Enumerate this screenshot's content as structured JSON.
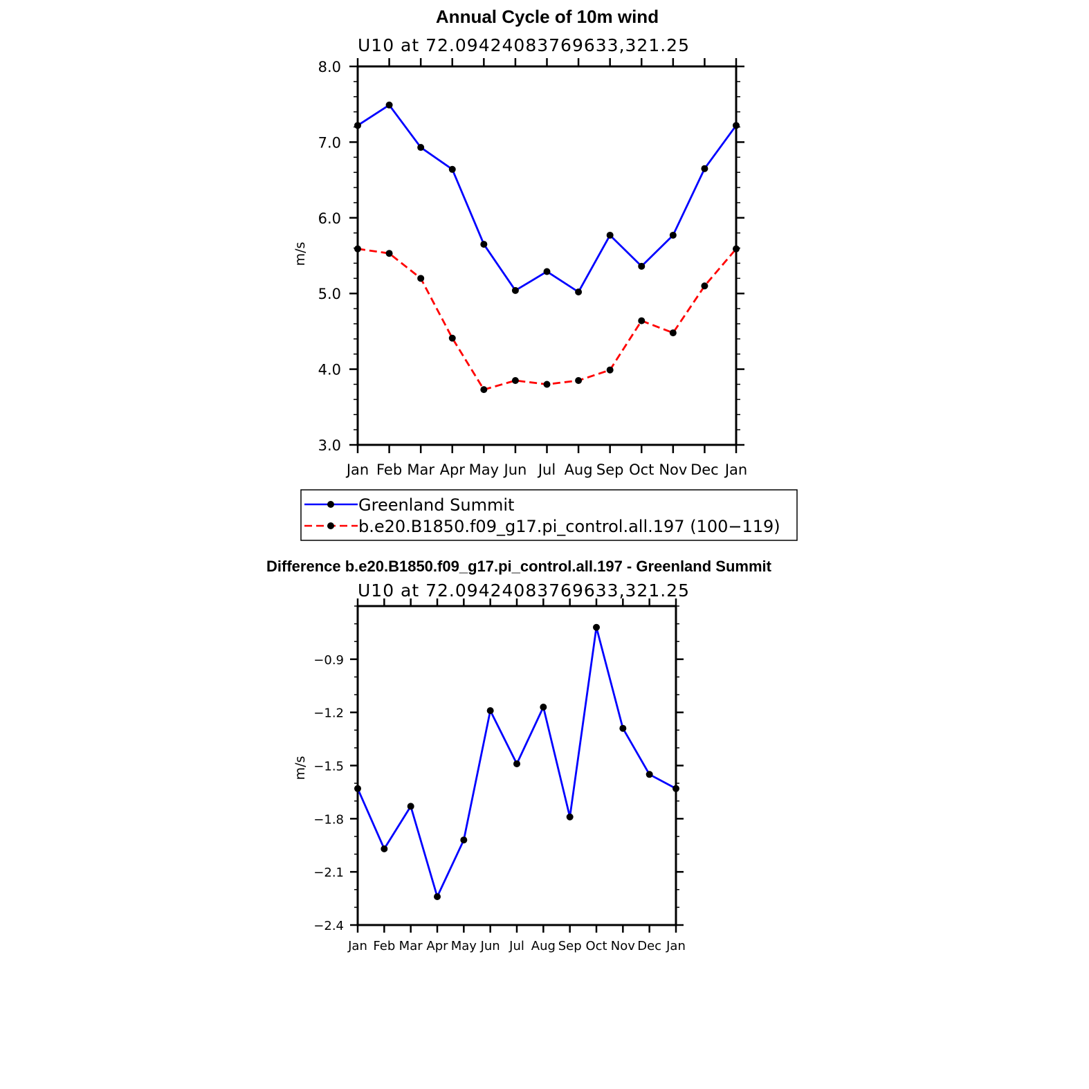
{
  "chart_data": [
    {
      "type": "line",
      "title": "Annual Cycle of 10m wind",
      "subtitle": "U10 at 72.09424083769633,321.25",
      "ylabel": "m/s",
      "xlabel": "",
      "categories": [
        "Jan",
        "Feb",
        "Mar",
        "Apr",
        "May",
        "Jun",
        "Jul",
        "Aug",
        "Sep",
        "Oct",
        "Nov",
        "Dec",
        "Jan"
      ],
      "ylim": [
        3.0,
        8.0
      ],
      "yticks": [
        "3.0",
        "4.0",
        "5.0",
        "6.0",
        "7.0",
        "8.0"
      ],
      "yticks_values": [
        3.0,
        4.0,
        5.0,
        6.0,
        7.0,
        8.0
      ],
      "grid": false,
      "legend": "bottom",
      "series": [
        {
          "name": "Greenland Summit",
          "color": "#0000ff",
          "dash": "solid",
          "values": [
            7.22,
            7.49,
            6.93,
            6.64,
            5.65,
            5.04,
            5.29,
            5.02,
            5.77,
            5.36,
            5.77,
            6.65,
            7.22
          ]
        },
        {
          "name": "b.e20.B1850.f09_g17.pi_control.all.197 (100−119)",
          "color": "#ff0000",
          "dash": "dashed",
          "values": [
            5.59,
            5.53,
            5.2,
            4.41,
            3.73,
            3.85,
            3.8,
            3.85,
            3.99,
            4.64,
            4.48,
            5.1,
            5.59
          ]
        }
      ]
    },
    {
      "type": "line",
      "title": "Difference b.e20.B1850.f09_g17.pi_control.all.197 - Greenland Summit",
      "subtitle": "U10 at 72.09424083769633,321.25",
      "ylabel": "m/s",
      "xlabel": "",
      "categories": [
        "Jan",
        "Feb",
        "Mar",
        "Apr",
        "May",
        "Jun",
        "Jul",
        "Aug",
        "Sep",
        "Oct",
        "Nov",
        "Dec",
        "Jan"
      ],
      "ylim": [
        -2.4,
        -0.6
      ],
      "yticks": [
        "−2.4",
        "−2.1",
        "−1.8",
        "−1.5",
        "−1.2",
        "−0.9"
      ],
      "yticks_values": [
        -2.4,
        -2.1,
        -1.8,
        -1.5,
        -1.2,
        -0.9
      ],
      "grid": false,
      "series": [
        {
          "color": "#0000ff",
          "dash": "solid",
          "values": [
            -1.63,
            -1.97,
            -1.73,
            -2.24,
            -1.92,
            -1.19,
            -1.49,
            -1.17,
            -1.79,
            -0.72,
            -1.29,
            -1.55,
            -1.63
          ]
        }
      ]
    }
  ]
}
